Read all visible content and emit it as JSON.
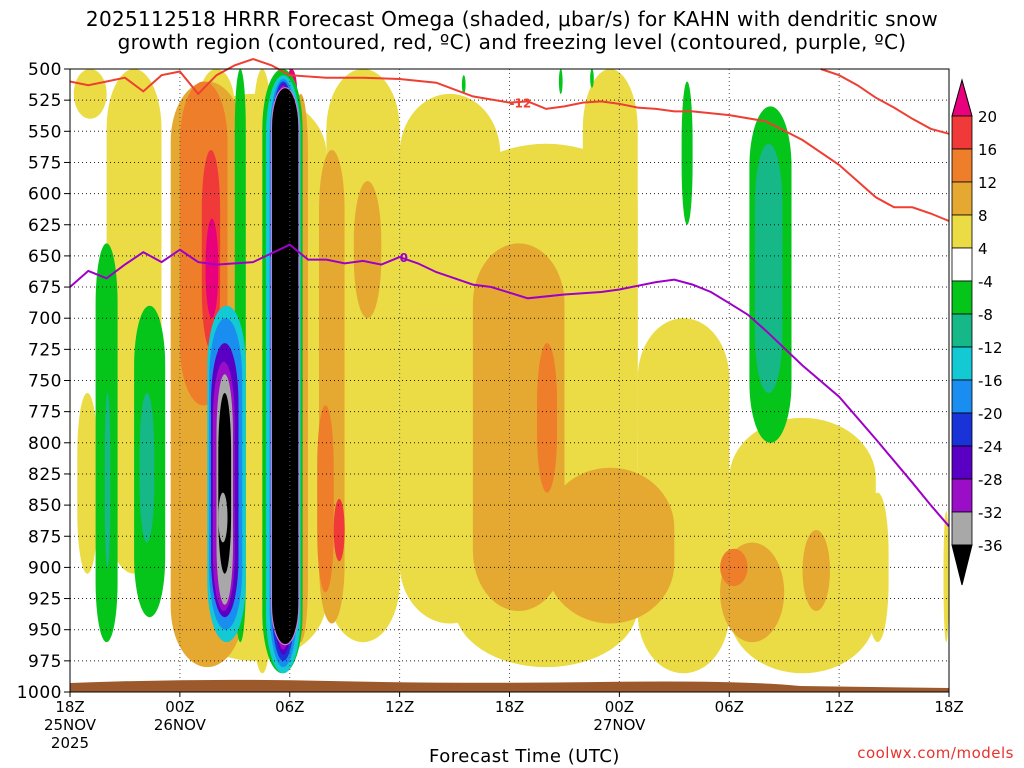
{
  "header": {
    "title_line1": "2025112518 HRRR Forecast Omega (shaded, μbar/s) for KAHN with dendritic snow",
    "title_line2": "growth region (contoured, red, ºC) and freezing level (contoured, purple, ºC)"
  },
  "footer": {
    "credit": "coolwx.com/models"
  },
  "chart_data": {
    "type": "heatmap",
    "xlabel": "Forecast Time (UTC)",
    "ylabel": "",
    "x_ticks": [
      {
        "hour": 0,
        "label": "18Z",
        "sub": [
          "25NOV",
          "2025"
        ]
      },
      {
        "hour": 6,
        "label": "00Z",
        "sub": [
          "26NOV"
        ]
      },
      {
        "hour": 12,
        "label": "06Z",
        "sub": []
      },
      {
        "hour": 18,
        "label": "12Z",
        "sub": []
      },
      {
        "hour": 24,
        "label": "18Z",
        "sub": []
      },
      {
        "hour": 30,
        "label": "00Z",
        "sub": [
          "27NOV"
        ]
      },
      {
        "hour": 36,
        "label": "06Z",
        "sub": []
      },
      {
        "hour": 42,
        "label": "12Z",
        "sub": []
      },
      {
        "hour": 48,
        "label": "18Z",
        "sub": []
      }
    ],
    "x_range": [
      0,
      48
    ],
    "y_ticks": [
      500,
      525,
      550,
      575,
      600,
      625,
      650,
      675,
      700,
      725,
      750,
      775,
      800,
      825,
      850,
      875,
      900,
      925,
      950,
      975,
      1000
    ],
    "y_range_hpa": [
      500,
      1000
    ],
    "colorbar": {
      "labels": [
        "20",
        "16",
        "12",
        "8",
        "4",
        "-4",
        "-8",
        "-12",
        "-16",
        "-20",
        "-24",
        "-28",
        "-32",
        "-36"
      ],
      "colors": [
        "#e8007c",
        "#f03a3a",
        "#ee7e2a",
        "#e5a932",
        "#ebdc46",
        "#ffffff",
        "#05c51a",
        "#15b886",
        "#12c9d4",
        "#1a8ef0",
        "#1a33d8",
        "#5a00c4",
        "#9b0ec8",
        "#a8a8a8",
        "#000000"
      ]
    },
    "series": [
      {
        "name": "-12 C isotherm (dendritic snow growth region)",
        "color": "#ef3e32",
        "label": "-12",
        "label_hour": 24,
        "points": [
          [
            0,
            510
          ],
          [
            1,
            513
          ],
          [
            2,
            510
          ],
          [
            3,
            507
          ],
          [
            4,
            518
          ],
          [
            5,
            505
          ],
          [
            6,
            502
          ],
          [
            7,
            520
          ],
          [
            8,
            505
          ],
          [
            9,
            497
          ],
          [
            10,
            492
          ],
          [
            11,
            497
          ],
          [
            12,
            505
          ],
          [
            14,
            507
          ],
          [
            16,
            507
          ],
          [
            18,
            508
          ],
          [
            20,
            511
          ],
          [
            22,
            522
          ],
          [
            24,
            527
          ],
          [
            25,
            526
          ],
          [
            26,
            532
          ],
          [
            27,
            530
          ],
          [
            28,
            527
          ],
          [
            29,
            526
          ],
          [
            30,
            528
          ],
          [
            31,
            531
          ],
          [
            32,
            532
          ],
          [
            33,
            534
          ],
          [
            34,
            534
          ],
          [
            36,
            537
          ],
          [
            38,
            542
          ],
          [
            40,
            557
          ],
          [
            42,
            577
          ],
          [
            44,
            603
          ],
          [
            45,
            611
          ],
          [
            46,
            611
          ],
          [
            47,
            616
          ],
          [
            48,
            622
          ]
        ]
      },
      {
        "name": "-12 C isotherm (upper branch)",
        "color": "#ef3e32",
        "label": "",
        "points": [
          [
            41,
            500
          ],
          [
            42,
            505
          ],
          [
            43,
            513
          ],
          [
            44,
            523
          ],
          [
            45,
            531
          ],
          [
            46,
            540
          ],
          [
            47,
            548
          ],
          [
            48,
            552
          ]
        ]
      },
      {
        "name": "0 C freezing level",
        "color": "#9e00c8",
        "label": "0",
        "label_hour": 18,
        "points": [
          [
            0,
            675
          ],
          [
            1,
            662
          ],
          [
            2,
            668
          ],
          [
            3,
            657
          ],
          [
            4,
            647
          ],
          [
            5,
            655
          ],
          [
            6,
            645
          ],
          [
            7,
            655
          ],
          [
            8,
            657
          ],
          [
            9,
            656
          ],
          [
            10,
            655
          ],
          [
            11,
            648
          ],
          [
            12,
            641
          ],
          [
            13,
            653
          ],
          [
            14,
            653
          ],
          [
            15,
            656
          ],
          [
            16,
            654
          ],
          [
            17,
            657
          ],
          [
            18,
            651
          ],
          [
            19,
            656
          ],
          [
            20,
            663
          ],
          [
            21,
            668
          ],
          [
            22,
            673
          ],
          [
            23,
            675
          ],
          [
            25,
            684
          ],
          [
            27,
            681
          ],
          [
            29,
            679
          ],
          [
            30,
            677
          ],
          [
            31,
            674
          ],
          [
            32,
            671
          ],
          [
            33,
            669
          ],
          [
            34,
            673
          ],
          [
            35,
            679
          ],
          [
            36,
            688
          ],
          [
            37,
            697
          ],
          [
            38,
            710
          ],
          [
            40,
            738
          ],
          [
            42,
            763
          ],
          [
            44,
            797
          ],
          [
            46,
            832
          ],
          [
            47,
            850
          ],
          [
            48,
            867
          ]
        ]
      }
    ],
    "omega_regions": [
      {
        "name": "upward-motion core",
        "value": "-36",
        "min_hour": 11,
        "max_hour": 12.5,
        "top_hpa": 515,
        "bottom_hpa": 962
      }
    ]
  }
}
